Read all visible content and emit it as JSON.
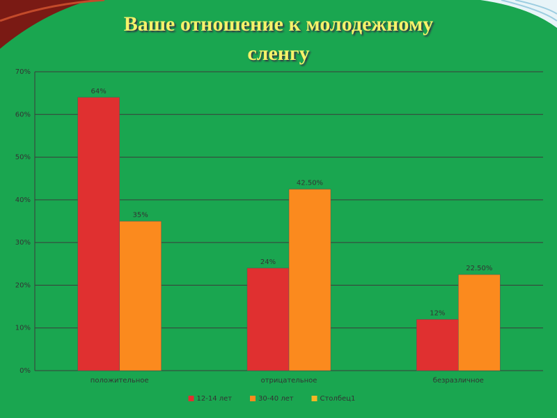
{
  "chart_data": {
    "type": "bar",
    "title": "Ваше отношение к молодежному сленгу",
    "categories": [
      "положительное",
      "отрицательное",
      "безразличное"
    ],
    "series": [
      {
        "name": "12-14 лет",
        "color": "#e03030",
        "values": [
          64,
          24,
          12
        ],
        "value_labels": [
          "64%",
          "24%",
          "12%"
        ]
      },
      {
        "name": "30-40 лет",
        "color": "#fb8a1e",
        "values": [
          35,
          42.5,
          22.5
        ],
        "value_labels": [
          "35%",
          "42.50%",
          "22.50%"
        ]
      },
      {
        "name": "Столбец1",
        "color": "#f5b624",
        "values": [
          null,
          null,
          null
        ]
      }
    ],
    "ylim": [
      0,
      70
    ],
    "yticks": [
      {
        "value": 0,
        "label": "0%"
      },
      {
        "value": 10,
        "label": "10%"
      },
      {
        "value": 20,
        "label": "20%"
      },
      {
        "value": 30,
        "label": "30%"
      },
      {
        "value": 40,
        "label": "40%"
      },
      {
        "value": 50,
        "label": "50%"
      },
      {
        "value": 60,
        "label": "60%"
      },
      {
        "value": 70,
        "label": "70%"
      }
    ],
    "grid": true,
    "legend": "bottom"
  }
}
